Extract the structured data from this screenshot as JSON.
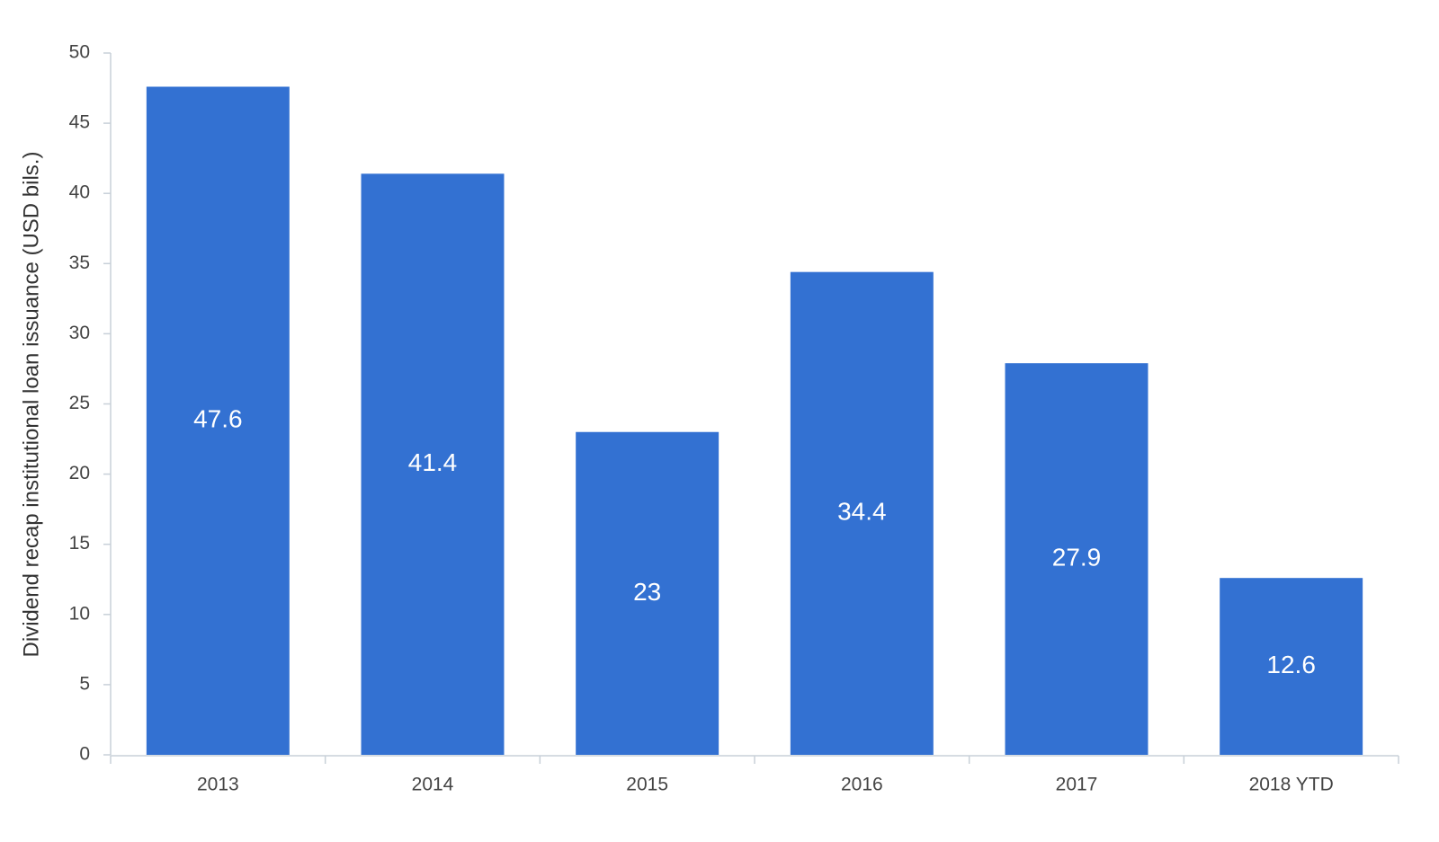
{
  "chart_data": {
    "type": "bar",
    "y_label": "Dividend recap institutional loan issuance (USD bils.)",
    "categories": [
      "2013",
      "2014",
      "2015",
      "2016",
      "2017",
      "2018 YTD"
    ],
    "values": [
      47.6,
      41.4,
      23,
      34.4,
      27.9,
      12.6
    ],
    "color": "#3371d2",
    "ylim": [
      0,
      50
    ],
    "yticks": [
      0,
      5,
      10,
      15,
      20,
      25,
      30,
      35,
      40,
      45,
      50
    ],
    "grid": false
  }
}
